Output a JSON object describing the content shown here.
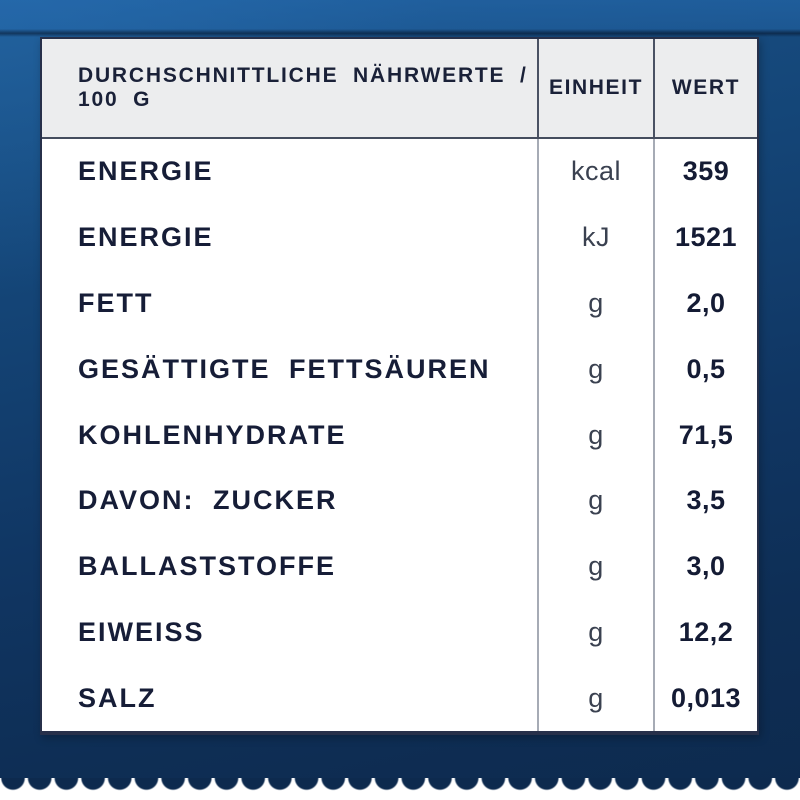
{
  "table": {
    "header": {
      "label": "DURCHSCHNITTLICHE NÄHRWERTE / 100 G",
      "unit": "EINHEIT",
      "value": "WERT"
    },
    "rows": [
      {
        "label": "ENERGIE",
        "unit": "kcal",
        "value": "359"
      },
      {
        "label": "ENERGIE",
        "unit": "kJ",
        "value": "1521"
      },
      {
        "label": "FETT",
        "unit": "g",
        "value": "2,0"
      },
      {
        "label": "GESÄTTIGTE FETTSÄUREN",
        "unit": "g",
        "value": "0,5"
      },
      {
        "label": "KOHLENHYDRATE",
        "unit": "g",
        "value": "71,5"
      },
      {
        "label": "DAVON: ZUCKER",
        "unit": "g",
        "value": "3,5"
      },
      {
        "label": "BALLASTSTOFFE",
        "unit": "g",
        "value": "3,0"
      },
      {
        "label": "EIWEISS",
        "unit": "g",
        "value": "12,2"
      },
      {
        "label": "SALZ",
        "unit": "g",
        "value": "0,013"
      }
    ]
  },
  "colors": {
    "background_navy": "#0d2a4e",
    "background_light_blue": "#1d5c9a",
    "card_background": "#ffffff",
    "header_background": "#ecedee",
    "text_navy": "#161d37",
    "divider_gray": "#a6abb5"
  }
}
